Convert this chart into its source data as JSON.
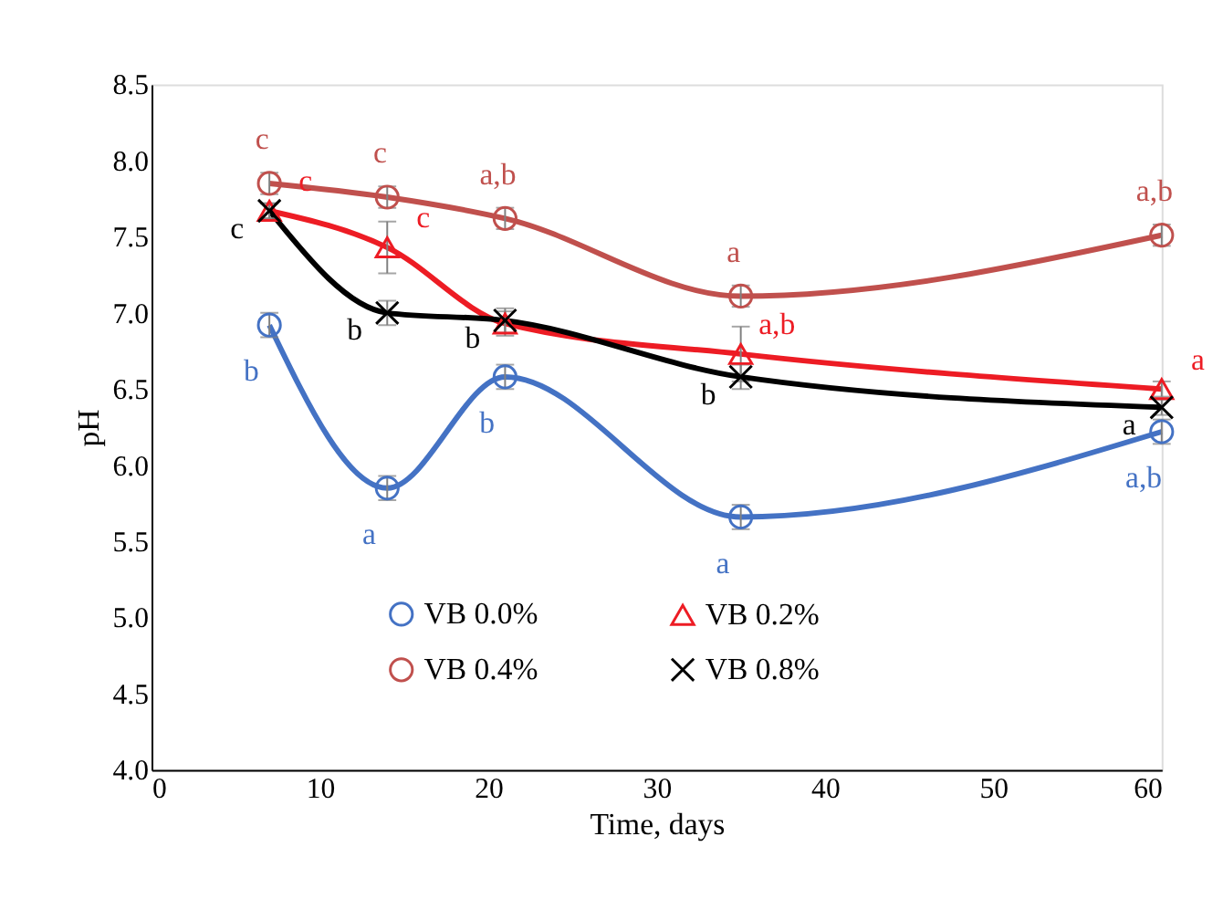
{
  "chart_data": {
    "type": "line",
    "xlabel": "Time, days",
    "ylabel": "pH",
    "x": [
      7,
      14,
      21,
      35,
      60
    ],
    "xlim": [
      0,
      60
    ],
    "xticks": [
      0,
      10,
      20,
      30,
      40,
      50,
      60
    ],
    "ylim": [
      4.0,
      8.5
    ],
    "yticks": [
      {
        "value": 4,
        "label": "4.0"
      },
      4.5,
      {
        "value": 5,
        "label": "5.0"
      },
      5.5,
      {
        "value": 6,
        "label": "6.0"
      },
      6.5,
      {
        "value": 7,
        "label": "7.0"
      },
      7.5,
      {
        "value": 8,
        "label": "8.0"
      },
      8.5
    ],
    "grid": false,
    "legend": "bottom",
    "line_style": "solid",
    "series": [
      {
        "name": "VB 0.0%",
        "color": "#4472c4",
        "marker": "circle",
        "values": [
          6.92,
          5.85,
          6.58,
          5.66,
          6.22
        ],
        "errors": [
          0.08,
          0.08,
          0.08,
          0.08,
          0.08
        ],
        "value_labels": [
          "b",
          "a",
          "b",
          "a",
          "a,b"
        ]
      },
      {
        "name": "VB 0.2%",
        "color": "#ed1c24",
        "marker": "triangle",
        "values": [
          7.67,
          7.43,
          6.93,
          6.73,
          6.5
        ],
        "errors": [
          0.05,
          0.17,
          0.08,
          0.18,
          0.05
        ],
        "value_labels": [
          "c",
          "c",
          null,
          "a,b",
          "a"
        ]
      },
      {
        "name": "VB 0.4%",
        "color": "#c0504d",
        "marker": "circle",
        "values": [
          7.85,
          7.76,
          7.62,
          7.11,
          7.51
        ],
        "errors": [
          0.07,
          0.07,
          0.07,
          0.07,
          0.07
        ],
        "value_labels": [
          "c",
          "c",
          "a,b",
          "a",
          "a,b"
        ]
      },
      {
        "name": "VB 0.8%",
        "color": "#000000",
        "marker": "cross",
        "values": [
          7.67,
          7.0,
          6.95,
          6.58,
          6.38
        ],
        "errors": [
          0.05,
          0.08,
          0.08,
          0.08,
          0.05
        ],
        "value_labels": [
          "c",
          "b",
          "b",
          "b",
          "a"
        ]
      }
    ]
  }
}
